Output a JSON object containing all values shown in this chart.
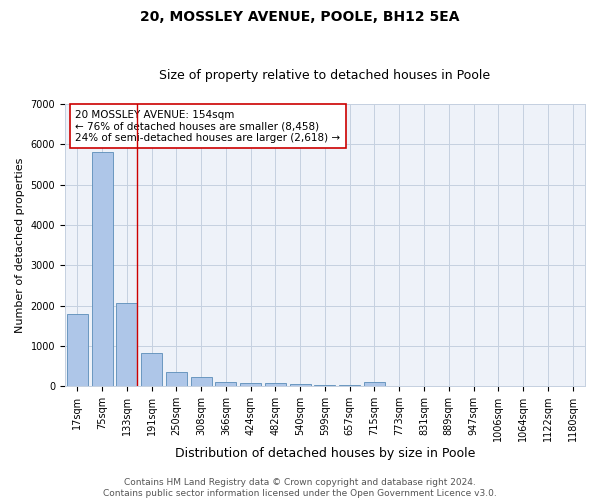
{
  "title1": "20, MOSSLEY AVENUE, POOLE, BH12 5EA",
  "title2": "Size of property relative to detached houses in Poole",
  "xlabel": "Distribution of detached houses by size in Poole",
  "ylabel": "Number of detached properties",
  "bar_labels": [
    "17sqm",
    "75sqm",
    "133sqm",
    "191sqm",
    "250sqm",
    "308sqm",
    "366sqm",
    "424sqm",
    "482sqm",
    "540sqm",
    "599sqm",
    "657sqm",
    "715sqm",
    "773sqm",
    "831sqm",
    "889sqm",
    "947sqm",
    "1006sqm",
    "1064sqm",
    "1122sqm",
    "1180sqm"
  ],
  "bar_values": [
    1780,
    5820,
    2060,
    830,
    360,
    220,
    110,
    90,
    70,
    50,
    40,
    30,
    110,
    0,
    0,
    0,
    0,
    0,
    0,
    0,
    0
  ],
  "bar_color": "#aec6e8",
  "bar_edge_color": "#5b8db8",
  "highlight_bar_index": 2,
  "highlight_color": "#cc0000",
  "annotation_text": "20 MOSSLEY AVENUE: 154sqm\n← 76% of detached houses are smaller (8,458)\n24% of semi-detached houses are larger (2,618) →",
  "annotation_box_color": "#ffffff",
  "annotation_box_edge": "#cc0000",
  "ylim": [
    0,
    7000
  ],
  "yticks": [
    0,
    1000,
    2000,
    3000,
    4000,
    5000,
    6000,
    7000
  ],
  "background_color": "#eef2f9",
  "grid_color": "#c5d0e0",
  "footer": "Contains HM Land Registry data © Crown copyright and database right 2024.\nContains public sector information licensed under the Open Government Licence v3.0.",
  "title1_fontsize": 10,
  "title2_fontsize": 9,
  "xlabel_fontsize": 9,
  "ylabel_fontsize": 8,
  "tick_fontsize": 7,
  "annotation_fontsize": 7.5,
  "footer_fontsize": 6.5
}
